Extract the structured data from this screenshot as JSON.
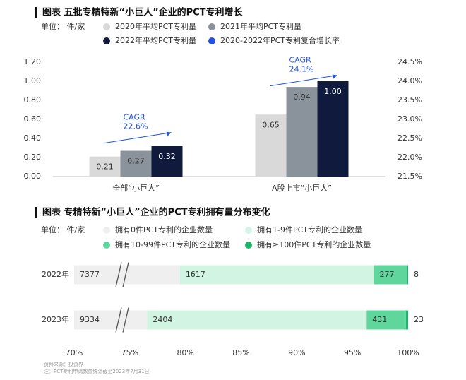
{
  "chart_data": [
    {
      "type": "bar",
      "title": "图表 五批专精特新“小巨人”企业的PCT专利增长",
      "unit": "单位： 件/家",
      "categories": [
        "全部“小巨人”",
        "A股上市“小巨人”"
      ],
      "series": [
        {
          "name": "2020年平均PCT专利量",
          "color": "#d9d9d9",
          "values": [
            0.21,
            0.65
          ]
        },
        {
          "name": "2021年平均PCT专利量",
          "color": "#8a939c",
          "values": [
            0.27,
            0.94
          ]
        },
        {
          "name": "2022年平均PCT专利量",
          "color": "#0f1a3d",
          "values": [
            0.32,
            1.0
          ],
          "value_labels": [
            "0.32",
            "1.00"
          ]
        },
        {
          "name": "2020-2022年PCT专利复合增长率",
          "color": "#2152e0",
          "axis": "y2",
          "values": [
            22.6,
            24.1
          ],
          "value_labels": [
            "22.6%",
            "24.1%"
          ],
          "annotation": "CAGR"
        }
      ],
      "ylim": [
        0,
        1.2
      ],
      "yticks": [
        {
          "value": 0,
          "label": "0.00"
        },
        {
          "value": 0.2,
          "label": "0.20"
        },
        {
          "value": 0.4,
          "label": "0.40"
        },
        {
          "value": 0.6,
          "label": "0.60"
        },
        {
          "value": 0.8,
          "label": "0.80"
        },
        {
          "value": 1.0,
          "label": "1.00"
        },
        {
          "value": 1.2,
          "label": "1.20"
        }
      ],
      "y2lim": [
        21.5,
        24.5
      ],
      "y2ticks": [
        {
          "value": 21.5,
          "label": "21.5%"
        },
        {
          "value": 22.0,
          "label": "22.0%"
        },
        {
          "value": 22.5,
          "label": "22.5%"
        },
        {
          "value": 23.0,
          "label": "23.0%"
        },
        {
          "value": 23.5,
          "label": "23.5%"
        },
        {
          "value": 24.0,
          "label": "24.0%"
        },
        {
          "value": 24.5,
          "label": "24.5%"
        }
      ]
    },
    {
      "type": "barh",
      "stack": "percent",
      "title": "图表 专精特新“小巨人”企业的PCT专利拥有量分布变化",
      "unit": "单位： 件/家",
      "categories": [
        "2022年",
        "2023年"
      ],
      "series": [
        {
          "name": "拥有0件PCT专利的企业数量",
          "color": "#efefef",
          "values": [
            7377,
            9334
          ]
        },
        {
          "name": "拥有1-9件PCT专利的企业数量",
          "color": "#d2f5e3",
          "values": [
            1617,
            2404
          ]
        },
        {
          "name": "拥有10-99件PCT专利的企业数量",
          "color": "#5fd69b",
          "values": [
            277,
            431
          ]
        },
        {
          "name": "拥有≥100件PCT专利的企业数量",
          "color": "#1db56a",
          "values": [
            8,
            23
          ]
        }
      ],
      "xlim": [
        70,
        100
      ],
      "xticks": [
        {
          "value": 70,
          "label": "70%"
        },
        {
          "value": 75,
          "label": "75%"
        },
        {
          "value": 80,
          "label": "80%"
        },
        {
          "value": 85,
          "label": "85%"
        },
        {
          "value": 90,
          "label": "90%"
        },
        {
          "value": 95,
          "label": "95%"
        },
        {
          "value": 100,
          "label": "100%"
        }
      ]
    }
  ],
  "footer": {
    "source": "资料来源：投资界",
    "note": "注：PCT专利申请数量统计截至2023年7月31日"
  }
}
